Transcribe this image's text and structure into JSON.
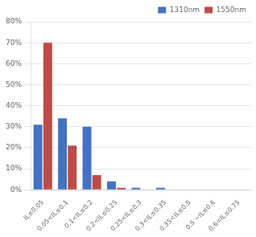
{
  "chart_data": {
    "type": "bar",
    "categories": [
      "IL≤0.05",
      "0.05<IL≤0.1",
      "0.1<IL≤0.2",
      "0.2<IL≤0.25",
      "0.25<IL≤0.3",
      "0.3<IL≤0.35",
      "0.35<IL≤0.5",
      "0.5 ~IL≤0.6",
      "0.6<IL≤0.75"
    ],
    "series": [
      {
        "name": "1310nm",
        "color": "#4472C4",
        "values": [
          31,
          34,
          30,
          4,
          1,
          1,
          0,
          0,
          0
        ]
      },
      {
        "name": "1550nm",
        "color": "#BE4B48",
        "values": [
          70,
          21,
          7,
          1,
          0,
          0,
          0,
          0,
          0
        ]
      }
    ],
    "ylim": [
      0,
      80
    ],
    "yticks": [
      {
        "value": 0,
        "label": "0%"
      },
      {
        "value": 10,
        "label": "10%"
      },
      {
        "value": 20,
        "label": "20%"
      },
      {
        "value": 30,
        "label": "30%"
      },
      {
        "value": 40,
        "label": "40%"
      },
      {
        "value": 50,
        "label": "50%"
      },
      {
        "value": 60,
        "label": "60%"
      },
      {
        "value": 70,
        "label": "70%"
      },
      {
        "value": 80,
        "label": "80%"
      }
    ],
    "grid": true,
    "legend": "upper right"
  }
}
